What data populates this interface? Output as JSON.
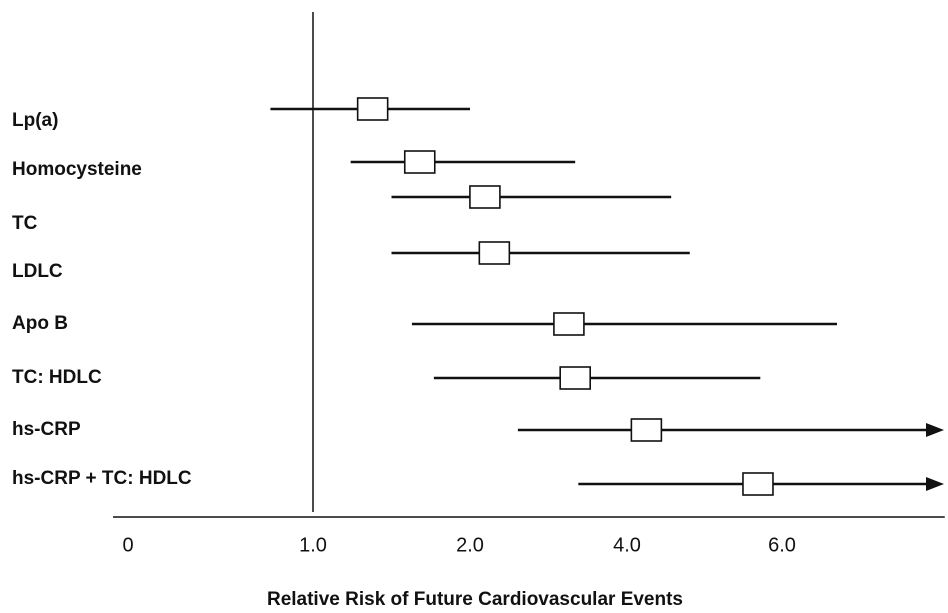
{
  "chart_data": {
    "type": "forest",
    "x_label": "Relative Risk of Future Cardiovascular Events",
    "categories": [
      "Lp(a)",
      "Homocysteine",
      "TC",
      "LDLC",
      "Apo B",
      "TC: HDLC",
      "hs-CRP",
      "hs-CRP + TC: HDLC"
    ],
    "values": [
      1.38,
      1.68,
      2.19,
      2.31,
      3.26,
      3.34,
      4.25,
      5.69
    ],
    "lower": [
      0.77,
      1.24,
      1.5,
      1.5,
      1.63,
      1.77,
      2.61,
      3.38
    ],
    "upper": [
      2.0,
      3.34,
      4.57,
      4.81,
      6.71,
      5.72,
      null,
      null
    ],
    "reference": 1.0,
    "xlim": [
      0,
      8.1
    ],
    "xticks": [
      0,
      {
        "value": 1,
        "label": "1.0"
      },
      {
        "value": 2,
        "label": "2.0"
      },
      {
        "value": 4,
        "label": "4.0"
      },
      {
        "value": 6,
        "label": "6.0"
      }
    ],
    "color": "#111111"
  }
}
